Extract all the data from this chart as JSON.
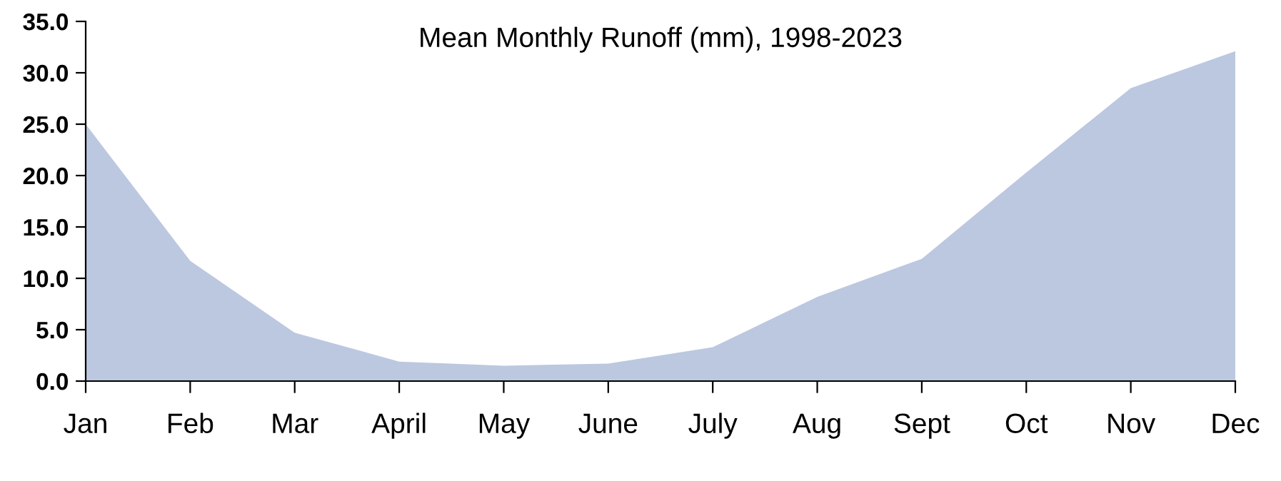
{
  "chart_data": {
    "type": "area",
    "title": "Mean Monthly Runoff (mm), 1998-2023",
    "categories": [
      "Jan",
      "Feb",
      "Mar",
      "April",
      "May",
      "June",
      "July",
      "Aug",
      "Sept",
      "Oct",
      "Nov",
      "Dec"
    ],
    "series": [
      {
        "color": "#bcc8e0",
        "values": [
          25.0,
          11.7,
          4.7,
          1.9,
          1.5,
          1.7,
          3.3,
          8.2,
          11.9,
          20.3,
          28.5,
          32.1
        ]
      }
    ],
    "ylim": [
      0,
      35
    ],
    "yticks": [
      {
        "value": 0,
        "label": "0.0"
      },
      {
        "value": 5,
        "label": "5.0"
      },
      {
        "value": 10,
        "label": "10.0"
      },
      {
        "value": 15,
        "label": "15.0"
      },
      {
        "value": 20,
        "label": "20.0"
      },
      {
        "value": 25,
        "label": "25.0"
      },
      {
        "value": 30,
        "label": "30.0"
      },
      {
        "value": 35,
        "label": "35.0"
      }
    ],
    "grid": false,
    "legend": false
  }
}
